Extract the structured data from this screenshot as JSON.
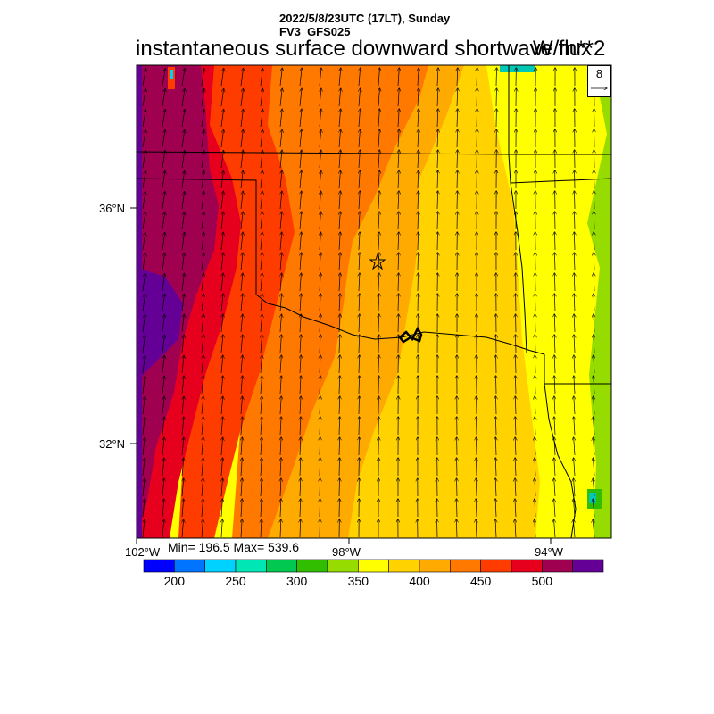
{
  "header": {
    "date_line": "2022/5/8/23UTC (17LT), Sunday",
    "model": "FV3_GFS025",
    "title": "instantaneous surface downward shortwave flux",
    "units": "W/m**2"
  },
  "map": {
    "lon_labels": [
      "102°W",
      "98°W",
      "94°W"
    ],
    "lat_labels": [
      "36°N",
      "32°N"
    ],
    "stats": "Min= 196.5 Max= 539.6",
    "vector_reference": "8",
    "location_marker": "star"
  },
  "colorbar": {
    "levels": [
      "200",
      "250",
      "300",
      "350",
      "400",
      "450",
      "500"
    ],
    "colors": [
      "#0000ff",
      "#0073ff",
      "#00d2ff",
      "#00e6b4",
      "#00c850",
      "#32be00",
      "#96dc00",
      "#ffff00",
      "#ffd200",
      "#ffaa00",
      "#ff7800",
      "#ff3c00",
      "#e6001e",
      "#a00050",
      "#640096"
    ]
  }
}
